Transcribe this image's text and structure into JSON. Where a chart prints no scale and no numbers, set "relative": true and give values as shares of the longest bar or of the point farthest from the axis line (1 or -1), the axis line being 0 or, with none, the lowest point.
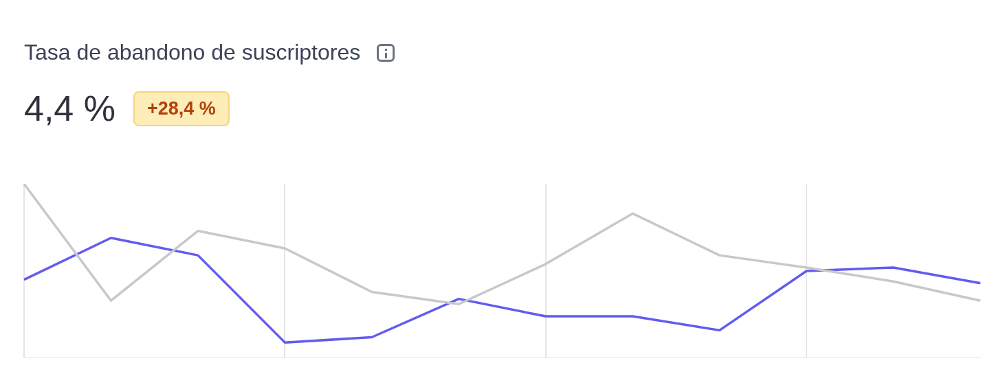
{
  "chart_data": {
    "type": "line",
    "title": "Tasa de abandono de suscriptores",
    "subtitle": "4,4 %",
    "annotations": [
      "+28,4 %"
    ],
    "categories": [
      null,
      null,
      null,
      null,
      null,
      null,
      null,
      null,
      null,
      null,
      null,
      null
    ],
    "relative": true,
    "grid": "x",
    "marker": "none",
    "series": [
      {
        "color": "#c8c8cc",
        "values": [
          1,
          0.33,
          0.73,
          0.63,
          0.38,
          0.31,
          0.54,
          0.83,
          0.59,
          0.52,
          0.44,
          0.33
        ]
      },
      {
        "color": "#635bf0",
        "values": [
          0.45,
          0.69,
          0.59,
          0.09,
          0.12,
          0.34,
          0.24,
          0.24,
          0.16,
          0.5,
          0.52,
          0.43
        ]
      }
    ]
  }
}
